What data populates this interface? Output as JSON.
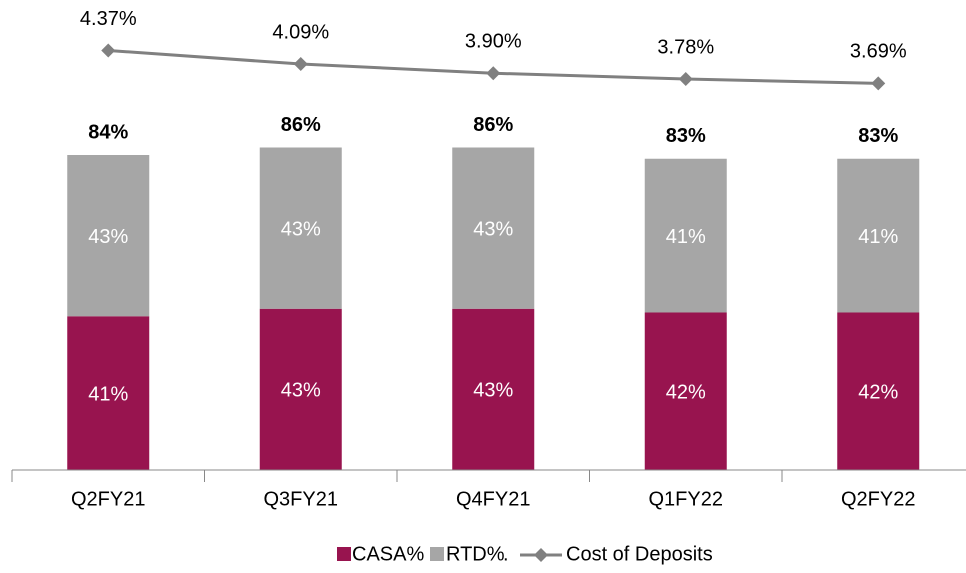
{
  "chart_data": {
    "type": "bar",
    "stacked": true,
    "categories": [
      "Q2FY21",
      "Q3FY21",
      "Q4FY21",
      "Q1FY22",
      "Q2FY22"
    ],
    "series": [
      {
        "name": "CASA%",
        "color": "#98144f",
        "values": [
          41,
          43,
          43,
          42,
          42
        ],
        "value_labels": [
          "41%",
          "43%",
          "43%",
          "42%",
          "42%"
        ]
      },
      {
        "name": "RTD%",
        "color": "#a6a6a6",
        "values": [
          43,
          43,
          43,
          41,
          41
        ],
        "value_labels": [
          "43%",
          "43%",
          "43%",
          "41%",
          "41%"
        ]
      },
      {
        "name": "Cost of Deposits",
        "type": "line",
        "axis": "y2",
        "color": "#808080",
        "values": [
          4.37,
          4.09,
          3.9,
          3.78,
          3.69
        ],
        "value_labels": [
          "4.37%",
          "4.09%",
          "3.90%",
          "3.78%",
          "3.69%"
        ]
      }
    ],
    "totals": {
      "values": [
        84,
        86,
        86,
        83,
        83
      ],
      "value_labels": [
        "84%",
        "86%",
        "86%",
        "83%",
        "83%"
      ]
    },
    "legend_separator": ".",
    "ylim": [
      0,
      120
    ],
    "y2lim": [
      -4.3,
      5.0
    ]
  }
}
